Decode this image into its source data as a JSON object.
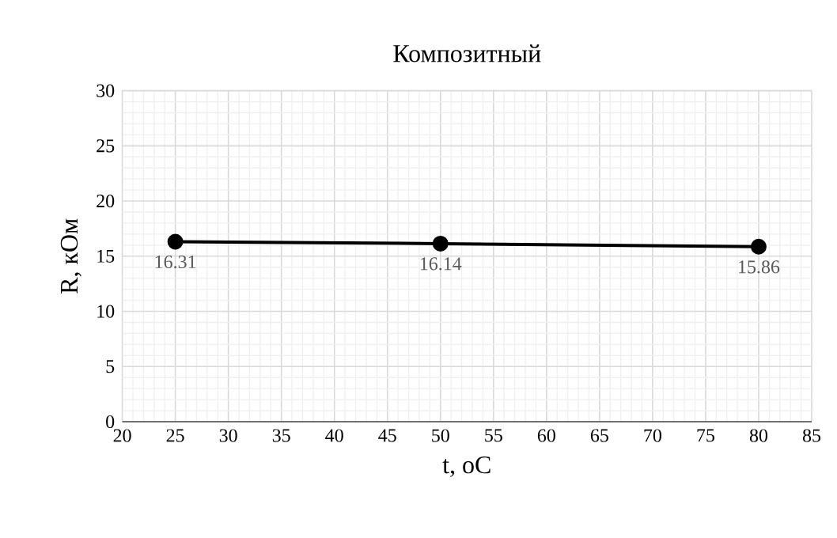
{
  "chart_data": {
    "type": "line",
    "title": "Композитный",
    "xlabel": "t, oC",
    "ylabel": "R, кОм",
    "x": [
      25,
      50,
      80
    ],
    "series": [
      {
        "color": "#000000",
        "values": [
          16.31,
          16.14,
          15.86
        ]
      }
    ],
    "xlim": [
      20,
      85
    ],
    "xticks": [
      20,
      25,
      30,
      35,
      40,
      45,
      50,
      55,
      60,
      65,
      70,
      75,
      80,
      85
    ],
    "ylim": [
      0,
      30
    ],
    "yticks": [
      0,
      5,
      10,
      15,
      20,
      25,
      30
    ],
    "grid": true,
    "marker": "circle",
    "line_style": "solid",
    "data_labels": true
  }
}
